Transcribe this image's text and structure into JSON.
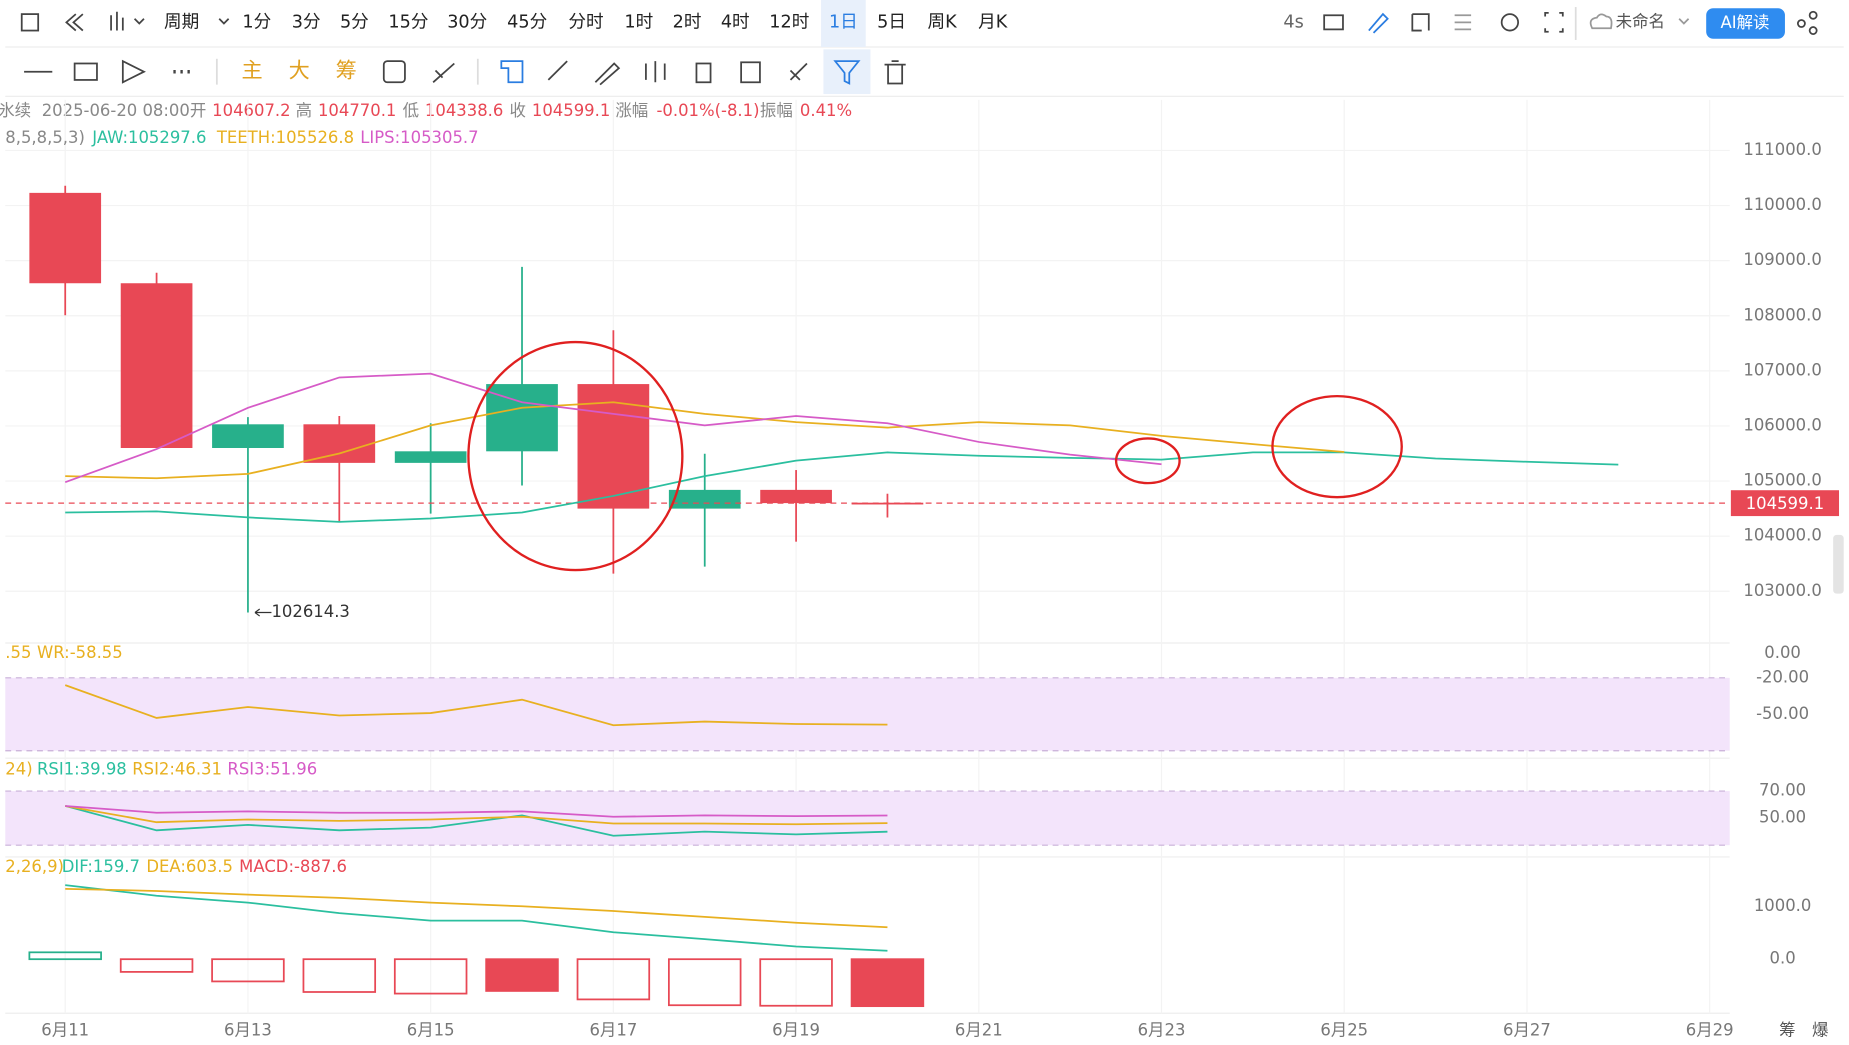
{
  "toolbar": {
    "period": "周期",
    "intervals": [
      "1分",
      "3分",
      "5分",
      "15分",
      "30分",
      "45分",
      "分时",
      "1时",
      "2时",
      "4时",
      "12时",
      "1日",
      "5日",
      "周K",
      "月K"
    ],
    "selected": "1日",
    "refresh": "4s",
    "layout_name": "未命名",
    "ai": "AI解读",
    "main_tools": [
      "主",
      "大",
      "筹"
    ],
    "corner": [
      "筹",
      "爆"
    ]
  },
  "info": {
    "symbol": "氷续",
    "time": "2025-06-20 08:00",
    "fields": [
      {
        "label": "开",
        "value": "104607.2"
      },
      {
        "label": "高",
        "value": "104770.1"
      },
      {
        "label": "低",
        "value": "104338.6"
      },
      {
        "label": "收",
        "value": "104599.1"
      },
      {
        "label": "涨幅",
        "value": "-0.01%(-8.1)"
      },
      {
        "label": "振幅",
        "value": "0.41%"
      }
    ]
  },
  "chart_data": [
    {
      "type": "candlestick",
      "indicator": "8,5,8,5,3)",
      "categories": [
        "6月11",
        null,
        "6月13",
        null,
        "6月15",
        null,
        "6月17",
        null,
        "6月19",
        null,
        "6月21",
        null,
        "6月23",
        null,
        "6月25",
        null,
        "6月27",
        null,
        "6月29"
      ],
      "ylim": [
        102104,
        111917
      ],
      "yticks": [
        {
          "value": 103000,
          "label": "103000.0"
        },
        {
          "value": 104000,
          "label": "104000.0"
        },
        {
          "value": 105000,
          "label": "105000.0"
        },
        {
          "value": 106000,
          "label": "106000.0"
        },
        {
          "value": 107000,
          "label": "107000.0"
        },
        {
          "value": 108000,
          "label": "108000.0"
        },
        {
          "value": 109000,
          "label": "109000.0"
        },
        {
          "value": 110000,
          "label": "110000.0"
        },
        {
          "value": 111000,
          "label": "111000.0"
        }
      ],
      "grid": true,
      "series": [
        {
          "type": "candlestick",
          "up_color": "#27b08b",
          "down_color": "#e84855",
          "open": [
            110230,
            108590,
            105600,
            106030,
            105330,
            105540,
            106760,
            104500,
            104840,
            104607.2,
            null,
            null,
            null,
            null,
            null,
            null,
            null,
            null,
            null
          ],
          "high": [
            110360,
            108780,
            106160,
            106180,
            106050,
            108888,
            107736,
            105496,
            105200,
            104770.1,
            null,
            null,
            null,
            null,
            null,
            null,
            null,
            null,
            null
          ],
          "low": [
            108010,
            105600,
            102614.3,
            104259,
            104408,
            104920,
            103320,
            103448,
            103900,
            104338.6,
            null,
            null,
            null,
            null,
            null,
            null,
            null,
            null,
            null
          ],
          "close": [
            108590,
            105600,
            106030,
            105330,
            105540,
            106760,
            104500,
            104840,
            104600,
            104599.1,
            null,
            null,
            null,
            null,
            null,
            null,
            null,
            null,
            null
          ]
        },
        {
          "type": "line",
          "name": "JAW:105297.6",
          "color": "#2bbf9f",
          "values": [
            104430,
            104450,
            104340,
            104260,
            104320,
            104430,
            104730,
            105090,
            105370,
            105520,
            105460,
            105420,
            105390,
            105520,
            105520,
            105410,
            105350,
            105297.6,
            null
          ]
        },
        {
          "type": "line",
          "name": "TEETH:105526.8",
          "color": "#e8b020",
          "values": [
            105090,
            105050,
            105130,
            105500,
            106010,
            106330,
            106430,
            106220,
            106070,
            105970,
            106070,
            106010,
            105820,
            105670,
            105526.8,
            null,
            null,
            null,
            null
          ]
        },
        {
          "type": "line",
          "name": "LIPS:105305.7",
          "color": "#d65bc7",
          "values": [
            104980,
            105580,
            106330,
            106880,
            106950,
            106430,
            106220,
            106010,
            106180,
            106050,
            105710,
            105480,
            105305.7,
            null,
            null,
            null,
            null,
            null,
            null
          ]
        }
      ]
    },
    {
      "type": "line",
      "indicator": ".55",
      "ylim": [
        -81.3,
        7.7
      ],
      "yticks": [
        {
          "value": 0,
          "label": "0.00"
        },
        {
          "value": -20,
          "label": "-20.00"
        },
        {
          "value": -50,
          "label": "-50.00"
        }
      ],
      "band": [
        -80,
        -20
      ],
      "band_color": "#f3e4fb",
      "series": [
        {
          "type": "line",
          "name": "WR:-58.55",
          "color": "#e8b020",
          "values": [
            -26,
            -53,
            -44,
            -51,
            -49,
            -38,
            -59,
            -56,
            -58,
            -58.55,
            null,
            null,
            null,
            null,
            null,
            null,
            null,
            null,
            null
          ]
        }
      ]
    },
    {
      "type": "line",
      "indicator": "24)",
      "ylim": [
        22.2,
        94.3
      ],
      "yticks": [
        {
          "value": 70,
          "label": "70.00"
        },
        {
          "value": 50,
          "label": "50.00"
        }
      ],
      "band": [
        30,
        70
      ],
      "band_color": "#f3e4fb",
      "series": [
        {
          "type": "line",
          "name": "RSI1:39.98",
          "color": "#2bbf9f",
          "values": [
            59,
            41,
            45,
            41,
            43,
            52,
            37,
            40,
            38,
            39.98,
            null,
            null,
            null,
            null,
            null,
            null,
            null,
            null,
            null
          ]
        },
        {
          "type": "line",
          "name": "RSI2:46.31",
          "color": "#e8b020",
          "values": [
            59,
            47,
            49,
            48,
            49,
            51,
            46,
            46,
            45.5,
            46.31,
            null,
            null,
            null,
            null,
            null,
            null,
            null,
            null,
            null
          ]
        },
        {
          "type": "line",
          "name": "RSI3:51.96",
          "color": "#d65bc7",
          "values": [
            59,
            54,
            55,
            54,
            54,
            55,
            51,
            52,
            51.5,
            51.96,
            null,
            null,
            null,
            null,
            null,
            null,
            null,
            null,
            null
          ]
        }
      ]
    },
    {
      "type": "bar",
      "indicator": "2,26,9)",
      "ylim": [
        -1022,
        1911
      ],
      "yticks": [
        {
          "value": 1000,
          "label": "1000.0"
        },
        {
          "value": 0,
          "label": "0.0"
        }
      ],
      "series": [
        {
          "type": "line",
          "name": "DIF:159.7",
          "color": "#2bbf9f",
          "values": [
            1400,
            1200,
            1070,
            870,
            730,
            730,
            510,
            380,
            240,
            159.7,
            null,
            null,
            null,
            null,
            null,
            null,
            null,
            null,
            null
          ]
        },
        {
          "type": "line",
          "name": "DEA:603.5",
          "color": "#e8b020",
          "values": [
            1330,
            1290,
            1220,
            1160,
            1070,
            1000,
            910,
            800,
            690,
            603.5,
            null,
            null,
            null,
            null,
            null,
            null,
            null,
            null,
            null
          ]
        },
        {
          "type": "bar",
          "name": "MACD:-887.6",
          "color": "#e84855",
          "up_color": "#27b08b",
          "down_color": "#e84855",
          "values": [
            130,
            -240,
            -420,
            -620,
            -650,
            -600,
            -760,
            -870,
            -880,
            -887.6,
            null,
            null,
            null,
            null,
            null,
            null,
            null,
            null,
            null
          ],
          "fill": [
            "hollow",
            "hollow",
            "hollow",
            "hollow",
            "hollow",
            "solid",
            "hollow",
            "hollow",
            "hollow",
            "solid",
            null,
            null,
            null,
            null,
            null,
            null,
            null,
            null,
            null
          ]
        }
      ]
    }
  ]
}
